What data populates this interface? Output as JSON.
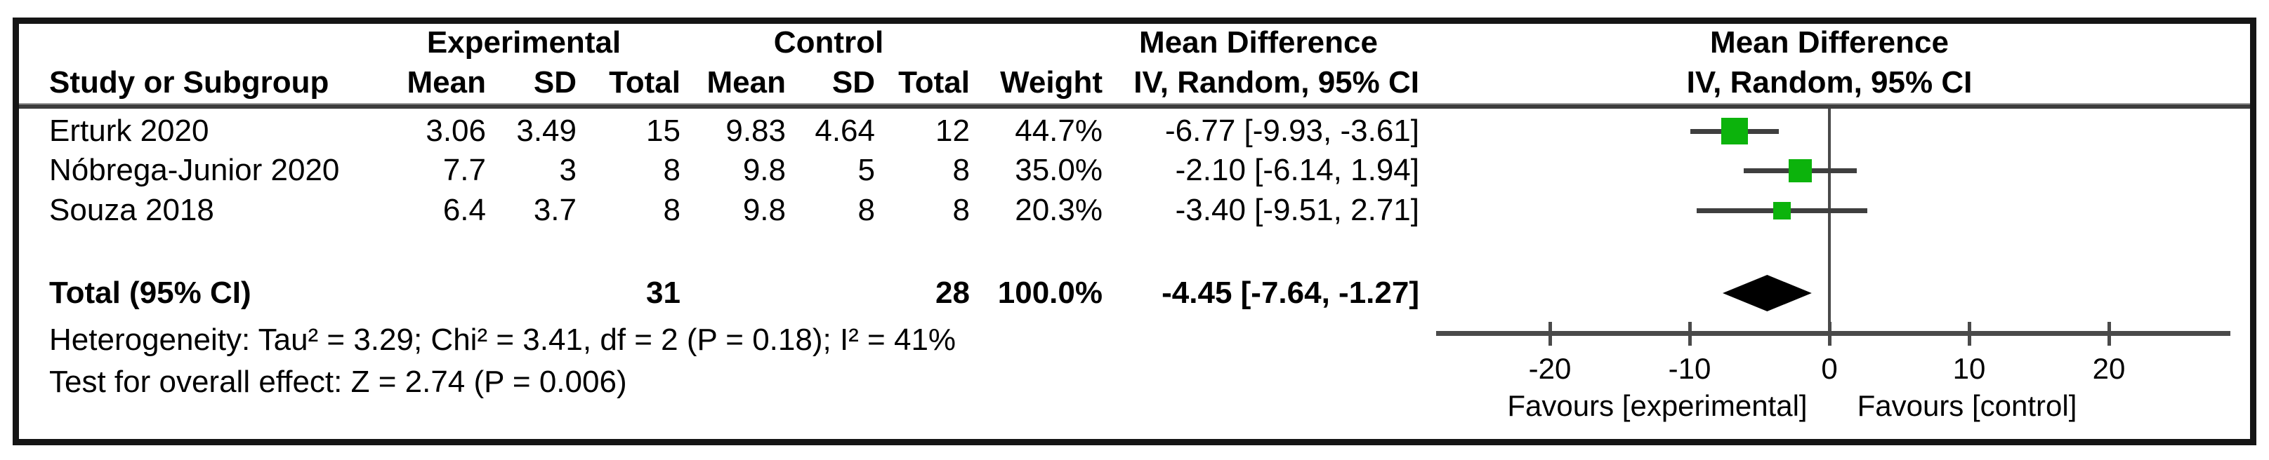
{
  "table": {
    "group_headers": {
      "experimental": "Experimental",
      "control": "Control"
    },
    "md_col_header": {
      "line1": "Mean Difference",
      "line2": "IV, Random, 95% CI"
    },
    "col_headers": {
      "study": "Study or Subgroup",
      "mean": "Mean",
      "sd": "SD",
      "total": "Total",
      "mean2": "Mean",
      "sd2": "SD",
      "total2": "Total",
      "weight": "Weight",
      "ci": "IV, Random, 95% CI"
    },
    "rows": [
      {
        "study": "Erturk 2020",
        "exp_mean": "3.06",
        "exp_sd": "3.49",
        "exp_total": "15",
        "ctrl_mean": "9.83",
        "ctrl_sd": "4.64",
        "ctrl_total": "12",
        "weight": "44.7%",
        "ci": "-6.77 [-9.93, -3.61]"
      },
      {
        "study": "Nóbrega-Junior 2020",
        "exp_mean": "7.7",
        "exp_sd": "3",
        "exp_total": "8",
        "ctrl_mean": "9.8",
        "ctrl_sd": "5",
        "ctrl_total": "8",
        "weight": "35.0%",
        "ci": "-2.10 [-6.14, 1.94]"
      },
      {
        "study": "Souza 2018",
        "exp_mean": "6.4",
        "exp_sd": "3.7",
        "exp_total": "8",
        "ctrl_mean": "9.8",
        "ctrl_sd": "8",
        "ctrl_total": "8",
        "weight": "20.3%",
        "ci": "-3.40 [-9.51, 2.71]"
      }
    ],
    "total_row": {
      "label": "Total (95% CI)",
      "exp_total": "31",
      "ctrl_total": "28",
      "weight": "100.0%",
      "ci": "-4.45 [-7.64, -1.27]"
    },
    "footnotes": {
      "heterogeneity": "Heterogeneity: Tau² = 3.29; Chi² = 3.41, df = 2 (P = 0.18); I² = 41%",
      "overall_effect": "Test for overall effect: Z = 2.74 (P = 0.006)"
    }
  },
  "plot": {
    "header": {
      "line1": "Mean Difference",
      "line2": "IV, Random, 95% CI"
    },
    "tick_labels": [
      "-20",
      "-10",
      "0",
      "10",
      "20"
    ],
    "favours_left": "Favours [experimental]",
    "favours_right": "Favours [control]",
    "colors": {
      "marker_green": "#0CB30C",
      "line_gray": "#4a4a4a",
      "ci_gray": "#3f3f3f",
      "diamond_black": "#000000"
    }
  },
  "chart_data": {
    "type": "forest",
    "effect_measure": "Mean Difference (IV, Random, 95% CI)",
    "studies": [
      {
        "name": "Erturk 2020",
        "md": -6.77,
        "ci_low": -9.93,
        "ci_high": -3.61,
        "weight_pct": 44.7
      },
      {
        "name": "Nóbrega-Junior 2020",
        "md": -2.1,
        "ci_low": -6.14,
        "ci_high": 1.94,
        "weight_pct": 35.0
      },
      {
        "name": "Souza 2018",
        "md": -3.4,
        "ci_low": -9.51,
        "ci_high": 2.71,
        "weight_pct": 20.3
      }
    ],
    "total": {
      "name": "Total (95% CI)",
      "md": -4.45,
      "ci_low": -7.64,
      "ci_high": -1.27,
      "weight_pct": 100.0
    },
    "heterogeneity": {
      "tau2": 3.29,
      "chi2": 3.41,
      "df": 2,
      "p": 0.18,
      "i2_pct": 41
    },
    "overall_effect": {
      "z": 2.74,
      "p": 0.006
    },
    "axis": {
      "ticks": [
        -20,
        -10,
        0,
        10,
        20
      ],
      "xlim": [
        -28.1,
        28.7
      ],
      "zero_line": true
    },
    "xlabel_left": "Favours [experimental]",
    "xlabel_right": "Favours [control]"
  }
}
